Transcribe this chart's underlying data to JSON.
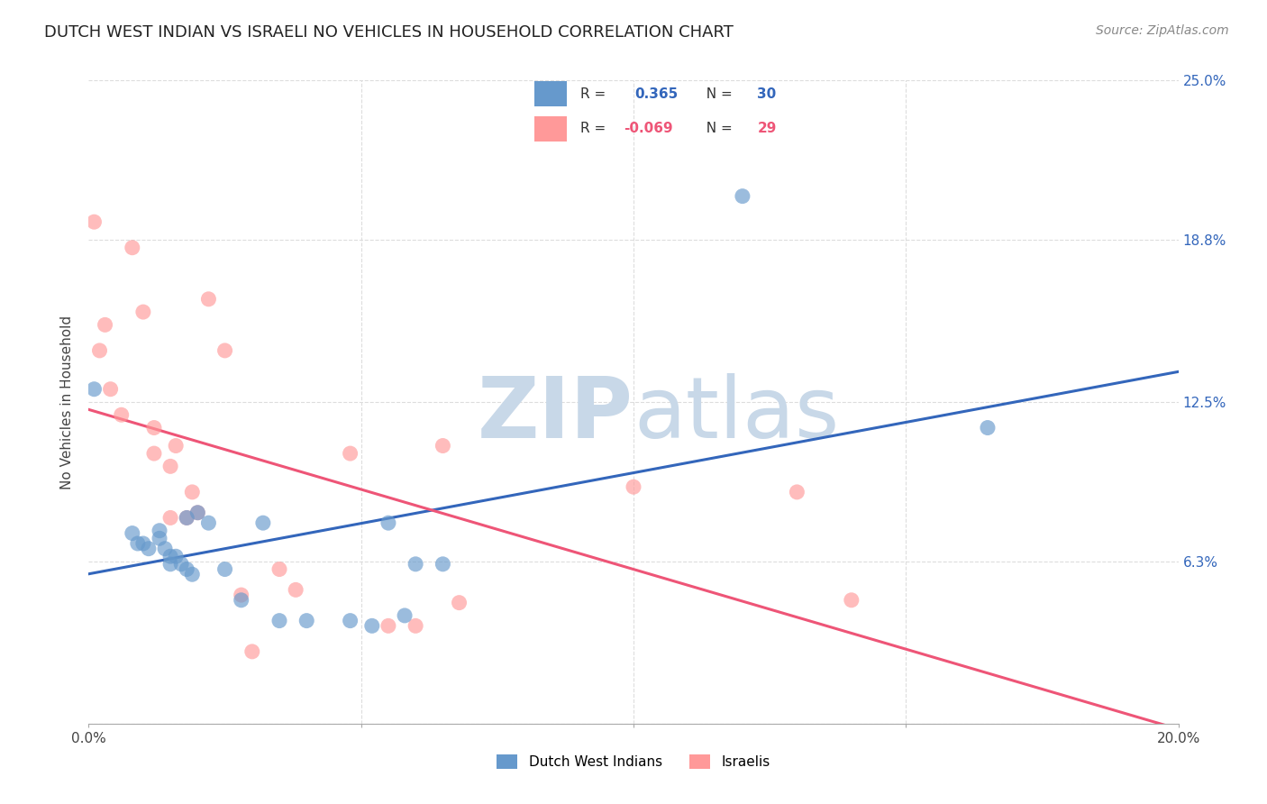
{
  "title": "DUTCH WEST INDIAN VS ISRAELI NO VEHICLES IN HOUSEHOLD CORRELATION CHART",
  "source": "Source: ZipAtlas.com",
  "ylabel": "No Vehicles in Household",
  "xlim": [
    0.0,
    0.2
  ],
  "ylim": [
    0.0,
    0.25
  ],
  "ytick_positions": [
    0.0,
    0.063,
    0.125,
    0.188,
    0.25
  ],
  "ytick_labels": [
    "",
    "6.3%",
    "12.5%",
    "18.8%",
    "25.0%"
  ],
  "grid_color": "#dddddd",
  "background_color": "#ffffff",
  "watermark_color": "#c8d8e8",
  "legend_label1": "Dutch West Indians",
  "legend_label2": "Israelis",
  "blue_color": "#6699cc",
  "pink_color": "#ff9999",
  "blue_line_color": "#3366bb",
  "pink_line_color": "#ee5577",
  "blue_r": "0.365",
  "blue_n": "30",
  "pink_r": "-0.069",
  "pink_n": "29",
  "blue_points_x": [
    0.001,
    0.008,
    0.009,
    0.01,
    0.011,
    0.013,
    0.013,
    0.014,
    0.015,
    0.015,
    0.016,
    0.017,
    0.018,
    0.018,
    0.019,
    0.02,
    0.022,
    0.025,
    0.028,
    0.032,
    0.035,
    0.04,
    0.048,
    0.052,
    0.055,
    0.058,
    0.06,
    0.065,
    0.12,
    0.165
  ],
  "blue_points_y": [
    0.13,
    0.074,
    0.07,
    0.07,
    0.068,
    0.072,
    0.075,
    0.068,
    0.065,
    0.062,
    0.065,
    0.062,
    0.06,
    0.08,
    0.058,
    0.082,
    0.078,
    0.06,
    0.048,
    0.078,
    0.04,
    0.04,
    0.04,
    0.038,
    0.078,
    0.042,
    0.062,
    0.062,
    0.205,
    0.115
  ],
  "pink_points_x": [
    0.001,
    0.002,
    0.003,
    0.004,
    0.006,
    0.008,
    0.01,
    0.012,
    0.012,
    0.015,
    0.015,
    0.016,
    0.018,
    0.019,
    0.02,
    0.022,
    0.025,
    0.028,
    0.03,
    0.035,
    0.038,
    0.048,
    0.055,
    0.06,
    0.065,
    0.068,
    0.1,
    0.13,
    0.14
  ],
  "pink_points_y": [
    0.195,
    0.145,
    0.155,
    0.13,
    0.12,
    0.185,
    0.16,
    0.115,
    0.105,
    0.1,
    0.08,
    0.108,
    0.08,
    0.09,
    0.082,
    0.165,
    0.145,
    0.05,
    0.028,
    0.06,
    0.052,
    0.105,
    0.038,
    0.038,
    0.108,
    0.047,
    0.092,
    0.09,
    0.048
  ]
}
